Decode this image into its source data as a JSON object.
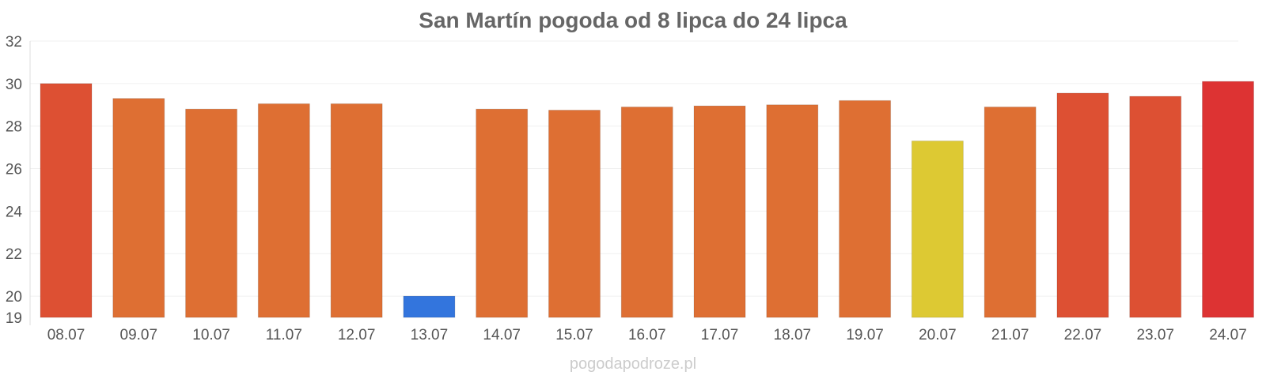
{
  "chart_data": {
    "type": "bar",
    "title": "San Martín pogoda od 8 lipca do 24 lipca",
    "categories": [
      "08.07",
      "09.07",
      "10.07",
      "11.07",
      "12.07",
      "13.07",
      "14.07",
      "15.07",
      "16.07",
      "17.07",
      "18.07",
      "19.07",
      "20.07",
      "21.07",
      "22.07",
      "23.07",
      "24.07"
    ],
    "values": [
      30.0,
      29.3,
      28.8,
      29.05,
      29.05,
      20.0,
      28.8,
      28.75,
      28.9,
      28.95,
      29.0,
      29.2,
      27.3,
      28.9,
      29.55,
      29.4,
      30.1
    ],
    "colors": [
      "#dd5033",
      "#de6f33",
      "#de6f33",
      "#de6f33",
      "#de6f33",
      "#3375dd",
      "#de6f33",
      "#de6f33",
      "#de6f33",
      "#de6f33",
      "#de6f33",
      "#de6f33",
      "#ddc933",
      "#de6f33",
      "#dd5033",
      "#dd5033",
      "#dd3333"
    ],
    "yticks": [
      19,
      20,
      22,
      24,
      26,
      28,
      30,
      32
    ],
    "ylim": [
      19,
      32
    ],
    "xlabel": "",
    "ylabel": "",
    "grid": true,
    "legend": "none"
  },
  "watermark": "pogodapodroze.pl"
}
